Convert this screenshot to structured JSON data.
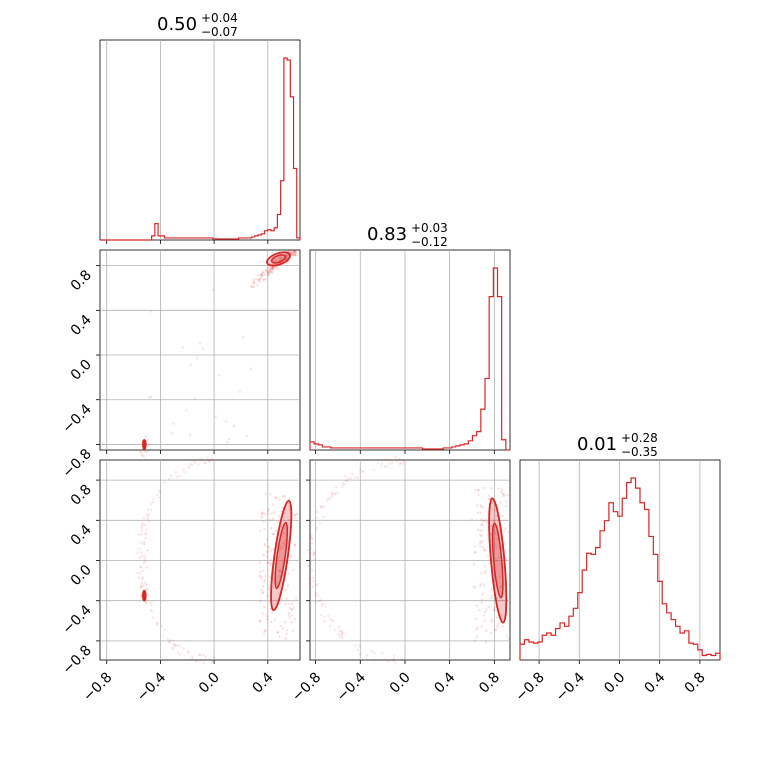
{
  "chart_data": {
    "type": "corner",
    "color": "#d62728",
    "grid": true,
    "tick_labels": [
      "−0.8",
      "−0.4",
      "0.0",
      "0.4",
      "0.8"
    ],
    "tick_values": [
      -0.8,
      -0.4,
      0.0,
      0.4,
      0.8
    ],
    "parameters": [
      {
        "median": "0.50",
        "plus": "+0.04",
        "minus": "−0.07",
        "range": [
          -0.85,
          0.64
        ]
      },
      {
        "median": "0.83",
        "plus": "+0.03",
        "minus": "−0.12",
        "range": [
          -0.85,
          0.94
        ]
      },
      {
        "median": "0.01",
        "plus": "+0.28",
        "minus": "−0.35",
        "range": [
          -0.99,
          1.0
        ]
      }
    ],
    "histograms": [
      {
        "param": 0,
        "values": [
          0,
          0,
          0,
          0,
          0,
          0,
          0,
          0,
          0,
          0,
          0,
          0,
          0,
          0,
          0,
          0,
          4,
          16,
          4,
          4,
          2,
          2,
          2,
          2,
          2,
          2,
          2,
          2,
          2,
          2,
          2,
          2,
          2,
          2,
          2,
          1,
          1,
          1,
          1,
          1,
          1,
          1,
          1,
          2,
          2,
          2,
          2,
          3,
          4,
          5,
          6,
          9,
          10,
          9,
          12,
          25,
          58,
          178,
          176,
          140,
          70,
          2
        ]
      },
      {
        "param": 1,
        "values": [
          8,
          6,
          5,
          3,
          3,
          2,
          2,
          2,
          2,
          2,
          2,
          2,
          2,
          2,
          2,
          2,
          2,
          2,
          2,
          2,
          2,
          2,
          2,
          2,
          2,
          2,
          2,
          1,
          1,
          1,
          1,
          1,
          2,
          2,
          3,
          4,
          5,
          6,
          9,
          14,
          18,
          40,
          70,
          150,
          178,
          150,
          10,
          0
        ]
      },
      {
        "param": 2,
        "values": [
          14,
          18,
          16,
          15,
          16,
          22,
          24,
          22,
          28,
          33,
          30,
          39,
          46,
          60,
          80,
          95,
          94,
          100,
          115,
          124,
          140,
          132,
          128,
          144,
          158,
          162,
          153,
          140,
          134,
          110,
          94,
          70,
          50,
          42,
          36,
          30,
          24,
          26,
          15,
          14,
          9,
          4,
          5,
          4,
          6
        ]
      }
    ],
    "scatter": [
      {
        "xparam": 0,
        "yparam": 1,
        "modes": [
          {
            "x": [
              0.27,
              0.45,
              0.6
            ],
            "y": [
              0.62,
              0.85,
              0.93
            ],
            "weight": 40
          },
          {
            "x": [
              -0.54,
              -0.5
            ],
            "y": [
              -0.9,
              -0.74
            ],
            "weight": 5
          },
          {
            "x": [
              -0.55,
              0.3
            ],
            "y": [
              -0.8,
              0.6
            ],
            "weight": 6
          }
        ]
      },
      {
        "xparam": 0,
        "yparam": 2,
        "modes": [
          {
            "x": [
              0.35,
              0.6
            ],
            "y": [
              -0.75,
              0.7
            ],
            "weight": 40
          },
          {
            "x": [
              -0.54,
              -0.5
            ],
            "y": [
              -0.4,
              0.1
            ],
            "weight": 4
          }
        ]
      },
      {
        "xparam": 1,
        "yparam": 2,
        "modes": [
          {
            "x": [
              0.62,
              0.92
            ],
            "y": [
              -0.8,
              0.75
            ],
            "weight": 40
          }
        ]
      }
    ]
  }
}
